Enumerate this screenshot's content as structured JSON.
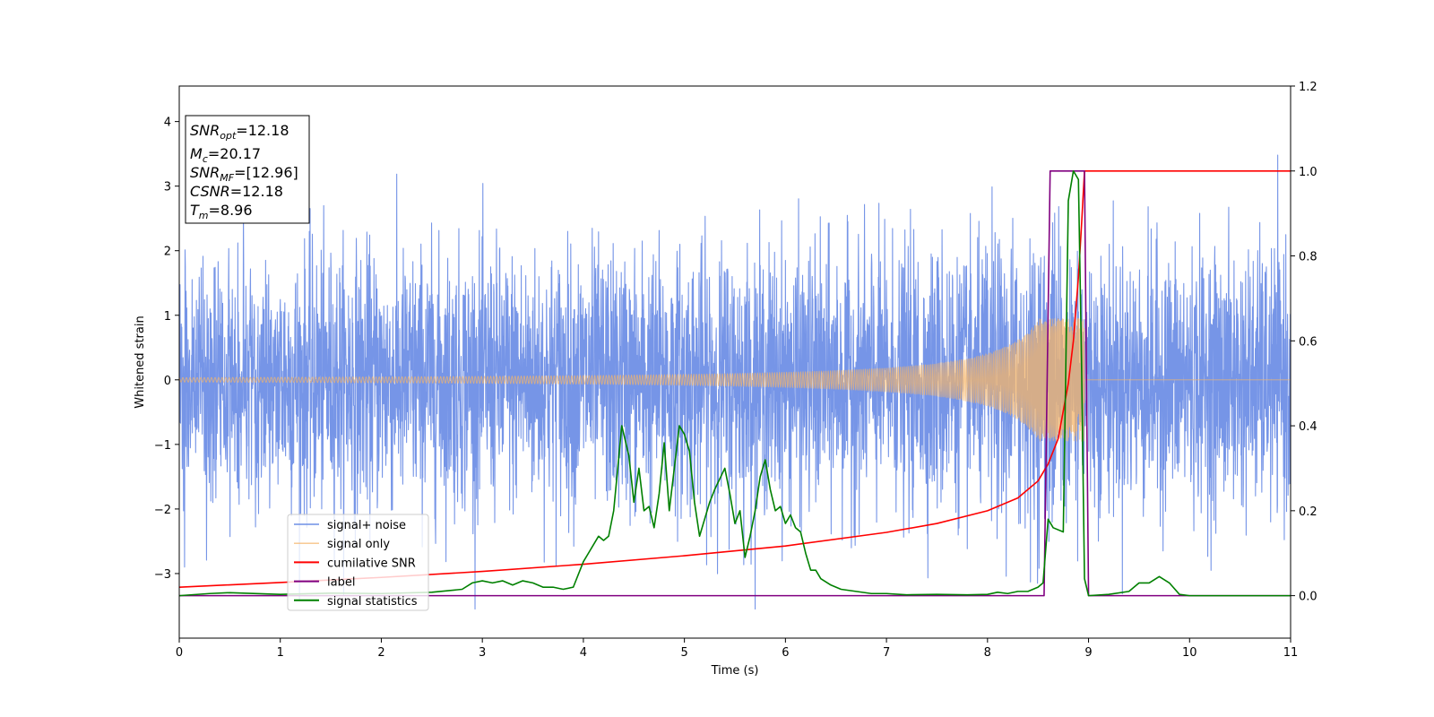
{
  "chart_data": {
    "type": "line",
    "title": "",
    "xlabel": "Time (s)",
    "ylabel": "Whitened strain",
    "xlim": [
      0,
      11
    ],
    "ylim": [
      -4,
      4.55
    ],
    "y2lim": [
      -0.1,
      1.2
    ],
    "x_ticks": [
      "0",
      "1",
      "2",
      "3",
      "4",
      "5",
      "6",
      "7",
      "8",
      "9",
      "10",
      "11"
    ],
    "y_ticks": [
      "−3",
      "−2",
      "−1",
      "0",
      "1",
      "2",
      "3",
      "4"
    ],
    "y2_ticks": [
      "0.0",
      "0.2",
      "0.4",
      "0.6",
      "0.8",
      "1.0",
      "1.2"
    ],
    "legend_position": "lower-left",
    "grid": false,
    "info_box": [
      {
        "base": "SNR",
        "sub": "opt",
        "rest": "=12.18"
      },
      {
        "base": "M",
        "sub": "c",
        "rest": "=20.17"
      },
      {
        "base": "SNR",
        "sub": "MF",
        "rest": "=[12.96]"
      },
      {
        "base": "CSNR",
        "sub": "",
        "rest": "=12.18"
      },
      {
        "base": "T",
        "sub": "m",
        "rest": "=8.96"
      }
    ],
    "series": [
      {
        "name": "signal+ noise",
        "color": "#6f8fe6",
        "axis": "left",
        "kind": "noise",
        "sigma": 1.0,
        "approx_range": [
          -3.55,
          3.48
        ]
      },
      {
        "name": "signal only",
        "color": "#f5b56a",
        "axis": "left",
        "kind": "chirp",
        "merger_time": 8.96,
        "peak_amplitude": 0.95
      },
      {
        "name": "cumilative SNR",
        "color": "#ff0000",
        "axis": "right",
        "x": [
          0,
          1,
          2,
          3,
          4,
          5,
          6,
          7,
          7.5,
          8,
          8.3,
          8.5,
          8.6,
          8.7,
          8.8,
          8.85,
          8.9,
          8.93,
          8.96,
          9.0,
          11
        ],
        "y": [
          0.02,
          0.031,
          0.043,
          0.057,
          0.074,
          0.094,
          0.117,
          0.149,
          0.17,
          0.2,
          0.23,
          0.27,
          0.31,
          0.37,
          0.5,
          0.6,
          0.75,
          0.87,
          1.0,
          1.0,
          1.0
        ]
      },
      {
        "name": "label",
        "color": "#800080",
        "axis": "right",
        "x": [
          0,
          8.56,
          8.62,
          8.96,
          9.0,
          11
        ],
        "y": [
          0,
          0,
          1,
          1,
          0,
          0
        ]
      },
      {
        "name": "signal statistics",
        "color": "#008000",
        "axis": "right",
        "x": [
          0,
          0.3,
          0.5,
          1,
          1.5,
          2,
          2.5,
          2.8,
          2.9,
          3.0,
          3.1,
          3.2,
          3.3,
          3.4,
          3.5,
          3.6,
          3.7,
          3.8,
          3.9,
          4.0,
          4.05,
          4.15,
          4.2,
          4.25,
          4.3,
          4.38,
          4.45,
          4.5,
          4.55,
          4.6,
          4.65,
          4.7,
          4.75,
          4.8,
          4.85,
          4.9,
          4.95,
          5.0,
          5.05,
          5.1,
          5.15,
          5.2,
          5.25,
          5.3,
          5.4,
          5.45,
          5.5,
          5.55,
          5.6,
          5.65,
          5.7,
          5.75,
          5.8,
          5.85,
          5.9,
          5.95,
          6.0,
          6.05,
          6.1,
          6.15,
          6.2,
          6.25,
          6.3,
          6.35,
          6.45,
          6.55,
          6.7,
          6.85,
          7.0,
          7.2,
          7.5,
          7.8,
          8.0,
          8.1,
          8.2,
          8.3,
          8.4,
          8.5,
          8.55,
          8.6,
          8.65,
          8.75,
          8.8,
          8.85,
          8.9,
          8.93,
          8.96,
          9.0,
          9.2,
          9.4,
          9.5,
          9.6,
          9.7,
          9.8,
          9.9,
          10.0,
          10.5,
          11
        ],
        "y": [
          0,
          0.005,
          0.007,
          0.003,
          0.006,
          0.005,
          0.008,
          0.015,
          0.03,
          0.035,
          0.03,
          0.035,
          0.025,
          0.035,
          0.03,
          0.02,
          0.02,
          0.015,
          0.02,
          0.08,
          0.1,
          0.14,
          0.13,
          0.14,
          0.2,
          0.4,
          0.33,
          0.22,
          0.3,
          0.2,
          0.21,
          0.16,
          0.24,
          0.36,
          0.2,
          0.3,
          0.4,
          0.38,
          0.34,
          0.22,
          0.14,
          0.18,
          0.22,
          0.25,
          0.3,
          0.24,
          0.17,
          0.2,
          0.09,
          0.14,
          0.2,
          0.28,
          0.32,
          0.25,
          0.2,
          0.21,
          0.17,
          0.19,
          0.16,
          0.15,
          0.1,
          0.06,
          0.06,
          0.04,
          0.025,
          0.015,
          0.01,
          0.005,
          0.005,
          0.002,
          0.003,
          0.002,
          0.003,
          0.008,
          0.005,
          0.01,
          0.01,
          0.02,
          0.03,
          0.18,
          0.16,
          0.15,
          0.93,
          1.0,
          0.98,
          0.56,
          0.04,
          0.0,
          0.003,
          0.01,
          0.03,
          0.03,
          0.045,
          0.03,
          0.003,
          0.0,
          0.0,
          0.0
        ]
      }
    ]
  }
}
